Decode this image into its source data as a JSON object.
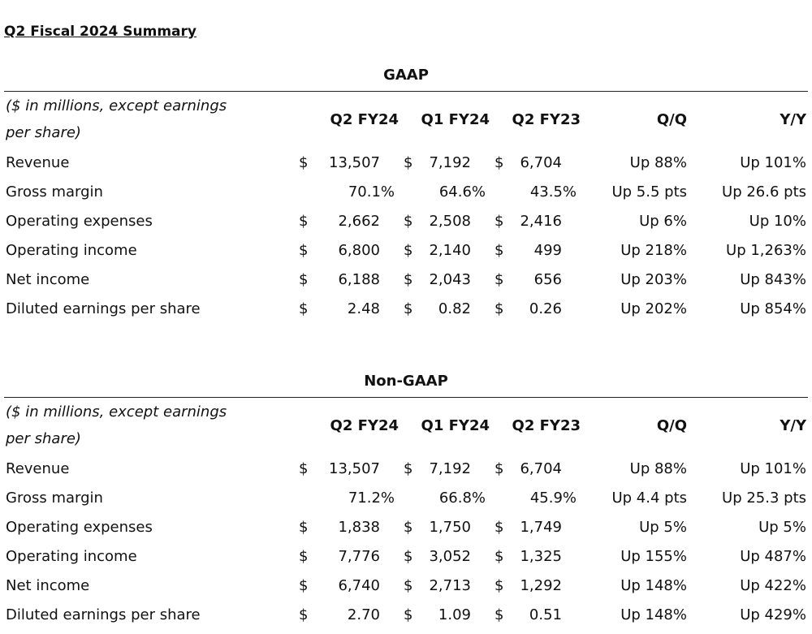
{
  "title": "Q2 Fiscal 2024 Summary",
  "sections": [
    {
      "title": "GAAP",
      "note": [
        "($ in millions, except earnings",
        "per share)"
      ],
      "columns": [
        "Q2 FY24",
        "Q1 FY24",
        "Q2 FY23",
        "Q/Q",
        "Y/Y"
      ],
      "rows": [
        {
          "label": "Revenue",
          "currency": "$",
          "values": [
            "13,507",
            "7,192",
            "6,704"
          ],
          "qq": "Up 88%",
          "yy": "Up 101%"
        },
        {
          "label": "Gross margin",
          "values": [
            "70.1%",
            "64.6%",
            "43.5%"
          ],
          "qq": "Up 5.5 pts",
          "yy": "Up 26.6 pts"
        },
        {
          "label": "Operating expenses",
          "currency": "$",
          "values": [
            "2,662",
            "2,508",
            "2,416"
          ],
          "qq": "Up 6%",
          "yy": "Up 10%"
        },
        {
          "label": "Operating income",
          "currency": "$",
          "values": [
            "6,800",
            "2,140",
            "499"
          ],
          "qq": "Up 218%",
          "yy": "Up 1,263%"
        },
        {
          "label": "Net income",
          "currency": "$",
          "values": [
            "6,188",
            "2,043",
            "656"
          ],
          "qq": "Up 203%",
          "yy": "Up 843%"
        },
        {
          "label": "Diluted earnings per share",
          "currency": "$",
          "values": [
            "2.48",
            "0.82",
            "0.26"
          ],
          "qq": "Up 202%",
          "yy": "Up 854%"
        }
      ]
    },
    {
      "title": "Non-GAAP",
      "note": [
        "($ in millions, except earnings",
        "per share)"
      ],
      "columns": [
        "Q2 FY24",
        "Q1 FY24",
        "Q2 FY23",
        "Q/Q",
        "Y/Y"
      ],
      "rows": [
        {
          "label": "Revenue",
          "currency": "$",
          "values": [
            "13,507",
            "7,192",
            "6,704"
          ],
          "qq": "Up 88%",
          "yy": "Up 101%"
        },
        {
          "label": "Gross margin",
          "values": [
            "71.2%",
            "66.8%",
            "45.9%"
          ],
          "qq": "Up 4.4 pts",
          "yy": "Up 25.3 pts"
        },
        {
          "label": "Operating expenses",
          "currency": "$",
          "values": [
            "1,838",
            "1,750",
            "1,749"
          ],
          "qq": "Up 5%",
          "yy": "Up 5%"
        },
        {
          "label": "Operating income",
          "currency": "$",
          "values": [
            "7,776",
            "3,052",
            "1,325"
          ],
          "qq": "Up 155%",
          "yy": "Up 487%"
        },
        {
          "label": "Net income",
          "currency": "$",
          "values": [
            "6,740",
            "2,713",
            "1,292"
          ],
          "qq": "Up 148%",
          "yy": "Up 422%"
        },
        {
          "label": "Diluted earnings per share",
          "currency": "$",
          "values": [
            "2.70",
            "1.09",
            "0.51"
          ],
          "qq": "Up 148%",
          "yy": "Up 429%"
        }
      ]
    }
  ]
}
